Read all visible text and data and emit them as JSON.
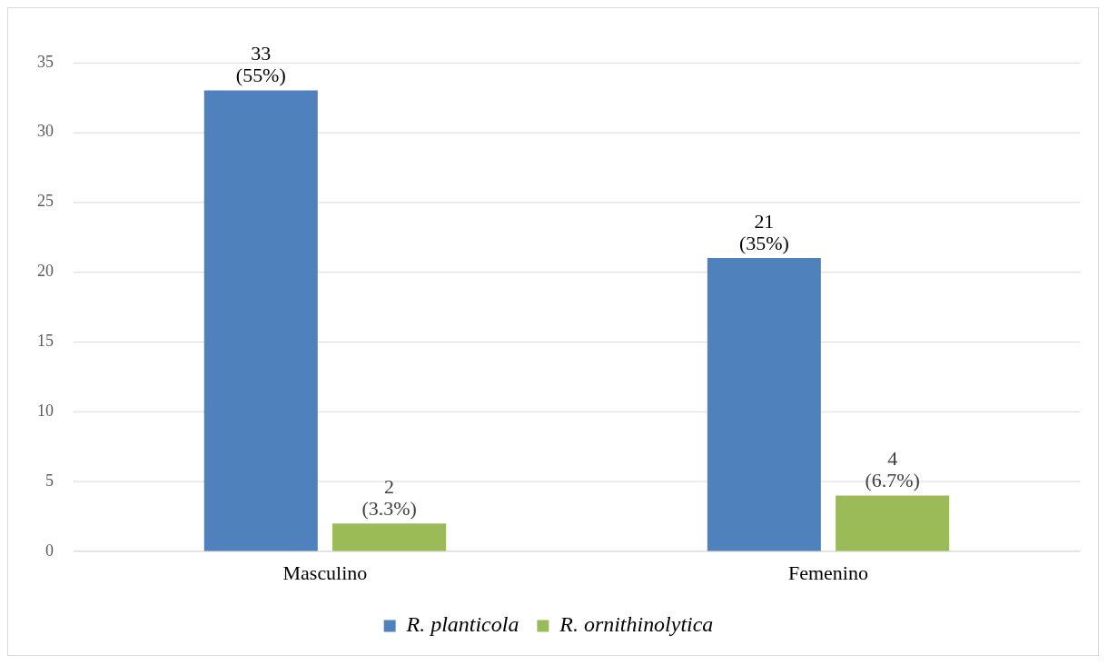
{
  "chart_data": {
    "type": "bar",
    "categories": [
      "Masculino",
      "Femenino"
    ],
    "series": [
      {
        "name": "R. planticola",
        "color": "#4f81bd",
        "values": [
          33,
          21
        ],
        "value_labels": [
          "33\n(55%)",
          "21\n(35%)"
        ]
      },
      {
        "name": "R. ornithinolytica",
        "color": "#9bbb59",
        "values": [
          2,
          4
        ],
        "value_labels": [
          "2\n(3.3%)",
          "4\n(6.7%)"
        ]
      }
    ],
    "ylim": [
      0,
      35
    ],
    "yticks": [
      0,
      5,
      10,
      15,
      20,
      25,
      30,
      35
    ],
    "grid": "y",
    "legend": "bottom"
  }
}
